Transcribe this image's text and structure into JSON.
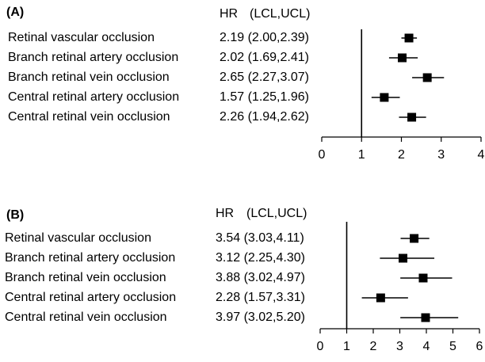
{
  "chart_data": [
    {
      "type": "forest",
      "panel_label": "(A)",
      "header": {
        "hr": "HR",
        "ci": "(LCL,UCL)"
      },
      "rows": [
        {
          "name": "Retinal vascular occlusion",
          "hr": 2.19,
          "lcl": 2.0,
          "ucl": 2.39,
          "text": "2.19 (2.00,2.39)"
        },
        {
          "name": "Branch retinal artery occlusion",
          "hr": 2.02,
          "lcl": 1.69,
          "ucl": 2.41,
          "text": "2.02 (1.69,2.41)"
        },
        {
          "name": "Branch retinal vein occlusion",
          "hr": 2.65,
          "lcl": 2.27,
          "ucl": 3.07,
          "text": "2.65 (2.27,3.07)"
        },
        {
          "name": "Central retinal artery occlusion",
          "hr": 1.57,
          "lcl": 1.25,
          "ucl": 1.96,
          "text": "1.57 (1.25,1.96)"
        },
        {
          "name": "Central retinal vein occlusion",
          "hr": 2.26,
          "lcl": 1.94,
          "ucl": 2.62,
          "text": "2.26 (1.94,2.62)"
        }
      ],
      "xlim": [
        0,
        4
      ],
      "ticks": [
        "0",
        "1",
        "2",
        "3",
        "4"
      ],
      "reference_line": 1
    },
    {
      "type": "forest",
      "panel_label": "(B)",
      "header": {
        "hr": "HR",
        "ci": "(LCL,UCL)"
      },
      "rows": [
        {
          "name": "Retinal vascular occlusion",
          "hr": 3.54,
          "lcl": 3.03,
          "ucl": 4.11,
          "text": "3.54 (3.03,4.11)"
        },
        {
          "name": "Branch retinal artery occlusion",
          "hr": 3.12,
          "lcl": 2.25,
          "ucl": 4.3,
          "text": "3.12 (2.25,4.30)"
        },
        {
          "name": "Branch retinal vein occlusion",
          "hr": 3.88,
          "lcl": 3.02,
          "ucl": 4.97,
          "text": "3.88 (3.02,4.97)"
        },
        {
          "name": "Central retinal artery occlusion",
          "hr": 2.28,
          "lcl": 1.57,
          "ucl": 3.31,
          "text": "2.28 (1.57,3.31)"
        },
        {
          "name": "Central retinal vein occlusion",
          "hr": 3.97,
          "lcl": 3.02,
          "ucl": 5.2,
          "text": "3.97 (3.02,5.20)"
        }
      ],
      "xlim": [
        0,
        6
      ],
      "ticks": [
        "0",
        "1",
        "2",
        "3",
        "4",
        "5",
        "6"
      ],
      "reference_line": 1
    }
  ]
}
